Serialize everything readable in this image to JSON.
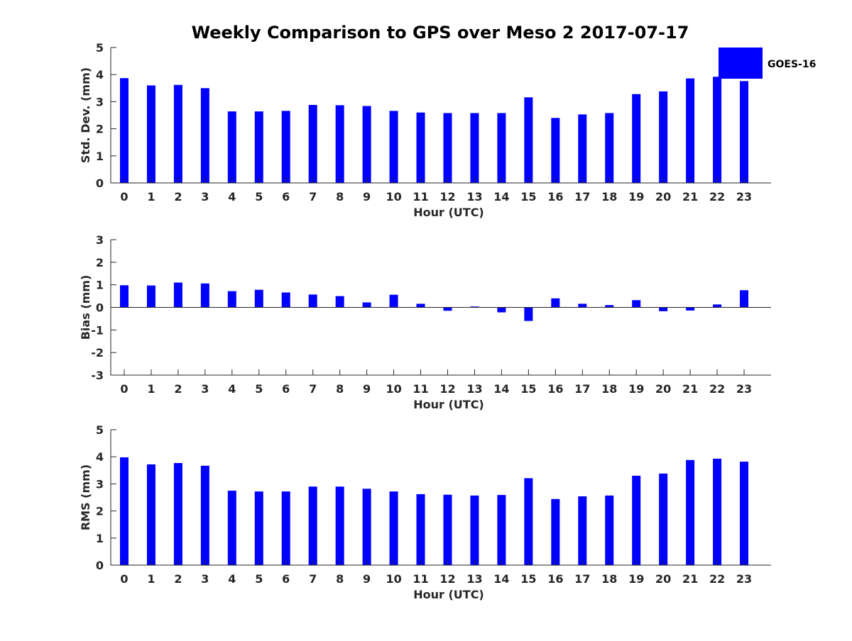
{
  "chart_data": {
    "type": "bar",
    "title": "Weekly Comparison to GPS over Meso 2 2017-07-17",
    "legend": {
      "label": "GOES-16",
      "color": "#0000ff",
      "placement": "top-right"
    },
    "bar_color": "#0000ff",
    "categories": [
      "0",
      "1",
      "2",
      "3",
      "4",
      "5",
      "6",
      "7",
      "8",
      "9",
      "10",
      "11",
      "12",
      "13",
      "14",
      "15",
      "16",
      "17",
      "18",
      "19",
      "20",
      "21",
      "22",
      "23"
    ],
    "panels": [
      {
        "id": "stddev",
        "xlabel": "Hour (UTC)",
        "ylabel": "Std. Dev. (mm)",
        "ylim": [
          0,
          5
        ],
        "yticks": [
          "0",
          "1",
          "2",
          "3",
          "4",
          "5"
        ],
        "series": [
          {
            "name": "GOES-16",
            "values": [
              3.87,
              3.6,
              3.62,
              3.5,
              2.64,
              2.64,
              2.66,
              2.88,
              2.87,
              2.84,
              2.66,
              2.6,
              2.58,
              2.58,
              2.58,
              3.16,
              2.4,
              2.53,
              2.58,
              3.28,
              3.38,
              3.86,
              3.92,
              3.76
            ]
          }
        ]
      },
      {
        "id": "bias",
        "xlabel": "Hour (UTC)",
        "ylabel": "Bias (mm)",
        "ylim": [
          -3,
          3
        ],
        "yticks": [
          "-3",
          "-2",
          "-1",
          "0",
          "1",
          "2",
          "3"
        ],
        "series": [
          {
            "name": "GOES-16",
            "values": [
              0.98,
              0.97,
              1.1,
              1.06,
              0.72,
              0.78,
              0.66,
              0.57,
              0.5,
              0.22,
              0.56,
              0.16,
              -0.15,
              0.04,
              -0.22,
              -0.6,
              0.4,
              0.16,
              0.1,
              0.32,
              -0.17,
              -0.14,
              0.13,
              0.76
            ]
          }
        ]
      },
      {
        "id": "rms",
        "xlabel": "Hour (UTC)",
        "ylabel": "RMS (mm)",
        "ylim": [
          0,
          5
        ],
        "yticks": [
          "0",
          "1",
          "2",
          "3",
          "4",
          "5"
        ],
        "series": [
          {
            "name": "GOES-16",
            "values": [
              3.98,
              3.72,
              3.77,
              3.67,
              2.75,
              2.72,
              2.72,
              2.9,
              2.9,
              2.82,
              2.72,
              2.62,
              2.6,
              2.57,
              2.59,
              3.21,
              2.44,
              2.54,
              2.57,
              3.3,
              3.38,
              3.88,
              3.93,
              3.82
            ]
          }
        ]
      }
    ]
  }
}
